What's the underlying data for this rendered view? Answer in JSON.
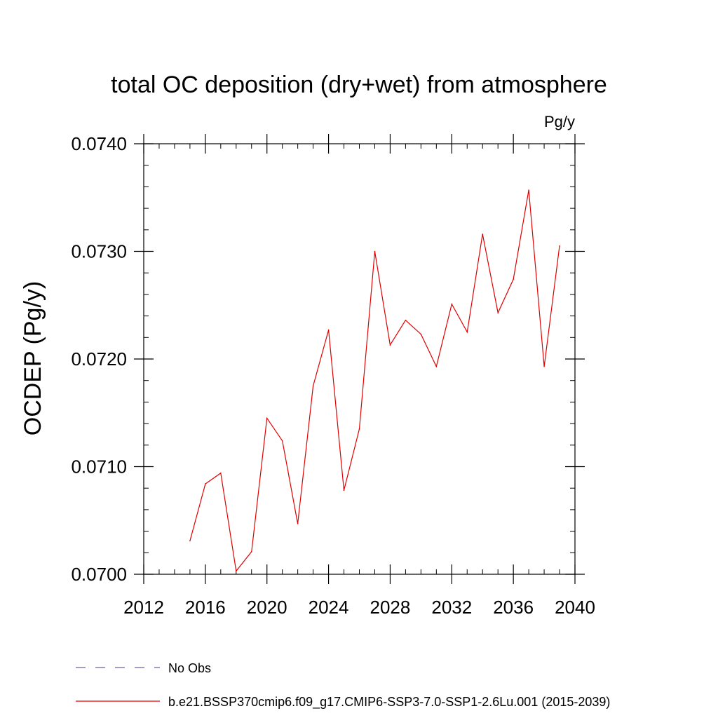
{
  "chart_data": {
    "type": "line",
    "title": "total OC deposition (dry+wet) from atmosphere",
    "units_label": "Pg/y",
    "ylabel": "OCDEP  (Pg/y)",
    "xlabel": "",
    "xlim": [
      2012,
      2040
    ],
    "ylim": [
      0.07,
      0.074
    ],
    "x_ticks": [
      2012,
      2016,
      2020,
      2024,
      2028,
      2032,
      2036,
      2040
    ],
    "x_tick_labels": [
      "2012",
      "2016",
      "2020",
      "2024",
      "2028",
      "2032",
      "2036",
      "2040"
    ],
    "y_ticks": [
      0.07,
      0.071,
      0.072,
      0.073,
      0.074
    ],
    "y_tick_labels": [
      "0.0700",
      "0.0710",
      "0.0720",
      "0.0730",
      "0.0740"
    ],
    "grid": false,
    "legend_position": "bottom",
    "series": [
      {
        "name": "No Obs",
        "color": "#6e5fa8",
        "style": "dashed",
        "x": [],
        "values": []
      },
      {
        "name": "b.e21.BSSP370cmip6.f09_g17.CMIP6-SSP3-7.0-SSP1-2.6Lu.001 (2015-2039)",
        "color": "#e00000",
        "style": "solid",
        "x": [
          2015,
          2016,
          2017,
          2018,
          2019,
          2020,
          2021,
          2022,
          2023,
          2024,
          2025,
          2026,
          2027,
          2028,
          2029,
          2030,
          2031,
          2032,
          2033,
          2034,
          2035,
          2036,
          2037,
          2038,
          2039
        ],
        "values": [
          0.07031,
          0.07084,
          0.07094,
          0.07003,
          0.07021,
          0.07145,
          0.07124,
          0.07047,
          0.07175,
          0.07227,
          0.07078,
          0.07135,
          0.073,
          0.07213,
          0.07236,
          0.07223,
          0.07193,
          0.07251,
          0.07225,
          0.07316,
          0.07243,
          0.07274,
          0.07357,
          0.07193,
          0.07305
        ]
      }
    ]
  }
}
